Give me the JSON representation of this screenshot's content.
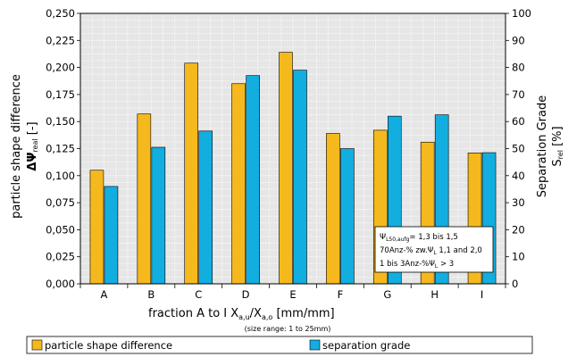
{
  "colors": {
    "particle_shape_difference": "#f5b91e",
    "separation_grade": "#13aee0",
    "plot_background": "#e6e6e6",
    "grid": "#ffffff"
  },
  "chart_data": {
    "type": "bar",
    "categories": [
      "A",
      "B",
      "C",
      "D",
      "E",
      "F",
      "G",
      "H",
      "I"
    ],
    "series": [
      {
        "name": "particle shape difference",
        "axis": "left",
        "values": [
          0.105,
          0.157,
          0.204,
          0.185,
          0.214,
          0.139,
          0.142,
          0.131,
          0.121
        ]
      },
      {
        "name": "separation grade",
        "axis": "right",
        "values": [
          36,
          50.5,
          56.5,
          77,
          79,
          50,
          62,
          62.5,
          48.5
        ]
      }
    ],
    "y_left": {
      "label_line1": "particle shape difference",
      "label_symbol": "ΔΨ",
      "label_subscript": "real",
      "label_unit": "[-]",
      "ylim": [
        0,
        0.25
      ],
      "ticks": [
        "0,000",
        "0,025",
        "0,050",
        "0,075",
        "0,100",
        "0,125",
        "0,150",
        "0,175",
        "0,200",
        "0,225",
        "0,250"
      ]
    },
    "y_right": {
      "label_line1": "Separation Grade",
      "label_symbol": "S",
      "label_subscript": "rel",
      "label_unit": "[%]",
      "ylim": [
        0,
        100
      ],
      "ticks": [
        "0",
        "10",
        "20",
        "30",
        "40",
        "50",
        "60",
        "70",
        "80",
        "90",
        "100"
      ]
    },
    "x_axis": {
      "label_part1": "fraction A to I  X",
      "label_sub1": "a,u",
      "label_part2": "/X",
      "label_sub2": "a,o",
      "label_part3": " [mm/mm]",
      "note": "(size range: 1 to 25mm)"
    },
    "grid": true,
    "legend": {
      "placement": "bottom",
      "entries": [
        "particle shape difference",
        "separation grade"
      ]
    },
    "annotation": {
      "line1_symbol": "Ψ",
      "line1_sub": "L50,aufg",
      "line1_rest": "= 1,3 bis 1,5",
      "line2_text": "70Anz-% zw.Ψ",
      "line2_sub": "L",
      "line2_rest": " 1,1 and 2,0",
      "line3_text": "1 bis 3Anz-%Ψ",
      "line3_sub": "L",
      "line3_rest": " > 3"
    }
  }
}
